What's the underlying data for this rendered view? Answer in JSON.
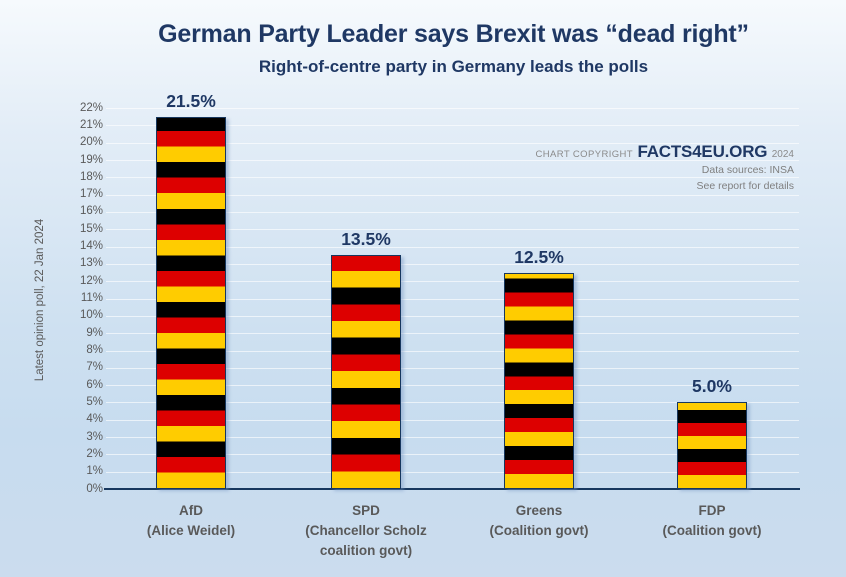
{
  "chart_data": {
    "type": "bar",
    "title": "German Party Leader says Brexit was “dead right”",
    "subtitle": "Right-of-centre party in Germany leads the polls",
    "ylabel": "Latest opinion poll, 22 Jan 2024",
    "xlabel": "",
    "ylim": [
      0,
      22
    ],
    "ytick_step": 1,
    "ytick_suffix": "%",
    "grid": "horizontal",
    "legend": "none",
    "categories": [
      {
        "name": "AfD",
        "sub": [
          "(Alice Weidel)"
        ]
      },
      {
        "name": "SPD",
        "sub": [
          "(Chancellor Scholz",
          "coalition govt)"
        ]
      },
      {
        "name": "Greens",
        "sub": [
          "(Coalition govt)"
        ]
      },
      {
        "name": "FDP",
        "sub": [
          "(Coalition govt)"
        ]
      }
    ],
    "values": [
      21.5,
      13.5,
      12.5,
      5.0
    ],
    "value_labels": [
      "21.5%",
      "13.5%",
      "12.5%",
      "5.0%"
    ],
    "bar_fill": {
      "style": "german-flag-horizontal-stripes",
      "stripe_colors_bottom_up": [
        "#ffcc00",
        "#dd0000",
        "#000000"
      ],
      "stripes_per_bar": [
        24,
        14,
        15.5,
        6.67
      ],
      "border_color": "#17375e"
    }
  },
  "copyright": {
    "prefix": "CHART COPYRIGHT",
    "brand": "FACTS4EU.ORG",
    "year": "2024",
    "source": "Data sources: INSA",
    "note": "See report for details"
  },
  "colors": {
    "title_text": "#1f3864",
    "axis_text": "#595959",
    "value_label_text": "#1f3864",
    "axis_line": "#17375e",
    "gridline": "rgba(255,255,255,0.62)",
    "background_top": "#f6fafd",
    "background_bottom": "#c7dcef"
  }
}
